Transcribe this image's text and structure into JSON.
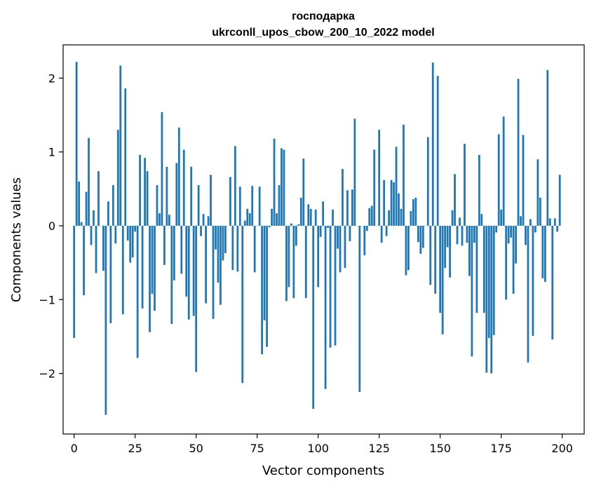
{
  "chart_data": {
    "type": "bar",
    "title": "господарка",
    "subtitle": "ukrconll_upos_cbow_200_10_2022 model",
    "xlabel": "Vector components",
    "ylabel": "Components values",
    "xlim": [
      -4.5,
      209
    ],
    "ylim": [
      -2.82,
      2.45
    ],
    "xticks": [
      0,
      25,
      50,
      75,
      100,
      125,
      150,
      175,
      200
    ],
    "xtick_labels": [
      "0",
      "25",
      "50",
      "75",
      "100",
      "125",
      "150",
      "175",
      "200"
    ],
    "yticks": [
      -2,
      -1,
      0,
      1,
      2
    ],
    "ytick_labels": [
      "−2",
      "−1",
      "0",
      "1",
      "2"
    ],
    "grid": false,
    "bar_color": "#1f77b4",
    "values": [
      -1.52,
      2.22,
      0.6,
      0.05,
      -0.94,
      0.46,
      1.19,
      -0.26,
      0.21,
      -0.64,
      0.74,
      0.0,
      -0.61,
      -2.56,
      0.33,
      -1.32,
      0.55,
      -0.24,
      1.3,
      2.17,
      -1.2,
      1.86,
      -0.2,
      -0.5,
      -0.43,
      -0.08,
      -1.79,
      0.96,
      -1.12,
      0.92,
      0.74,
      -1.44,
      -0.92,
      -1.15,
      0.55,
      0.17,
      1.54,
      -0.53,
      0.8,
      0.15,
      -1.33,
      -0.74,
      0.85,
      1.33,
      -0.65,
      1.03,
      -0.96,
      -1.27,
      0.8,
      -1.22,
      -1.98,
      0.55,
      -0.14,
      0.16,
      -1.05,
      0.13,
      0.69,
      -1.26,
      -0.32,
      -0.77,
      -1.07,
      -0.47,
      -0.37,
      0.0,
      0.66,
      -0.6,
      1.08,
      -0.62,
      0.53,
      -2.13,
      0.07,
      0.23,
      0.17,
      0.54,
      -0.63,
      0.0,
      0.53,
      -1.74,
      -1.28,
      -1.64,
      -0.02,
      0.23,
      1.18,
      0.17,
      0.55,
      1.05,
      1.03,
      -1.02,
      -0.83,
      0.03,
      -0.98,
      -0.27,
      0.02,
      0.38,
      0.91,
      -0.98,
      0.29,
      0.23,
      -2.48,
      0.22,
      -0.83,
      -0.15,
      0.33,
      -2.21,
      -0.03,
      -1.65,
      0.22,
      -1.62,
      -0.31,
      -0.63,
      0.77,
      -0.57,
      0.48,
      -0.21,
      0.49,
      1.45,
      0.0,
      -2.25,
      0.0,
      -0.4,
      -0.07,
      0.24,
      0.27,
      1.03,
      0.0,
      1.3,
      -0.23,
      0.62,
      -0.14,
      0.21,
      0.62,
      0.59,
      1.07,
      0.44,
      0.23,
      1.37,
      -0.67,
      -0.6,
      0.2,
      0.36,
      0.38,
      -0.22,
      -0.38,
      -0.3,
      0.0,
      1.2,
      -0.8,
      2.21,
      -0.92,
      2.03,
      -1.18,
      -1.47,
      -0.57,
      -0.29,
      -0.7,
      0.21,
      0.7,
      -0.25,
      0.11,
      -0.27,
      1.11,
      -0.23,
      -0.68,
      -1.77,
      -0.23,
      -1.18,
      0.96,
      0.16,
      -1.18,
      -1.99,
      -1.52,
      -2.0,
      -1.48,
      -0.09,
      1.24,
      0.22,
      1.48,
      -1.0,
      -0.24,
      -0.16,
      -0.92,
      -0.51,
      1.99,
      0.13,
      1.23,
      -0.26,
      -1.85,
      0.09,
      -1.49,
      -0.09,
      0.9,
      0.38,
      -0.71,
      -0.76,
      2.11,
      0.1,
      -1.54,
      0.1,
      -0.08,
      0.69
    ]
  }
}
